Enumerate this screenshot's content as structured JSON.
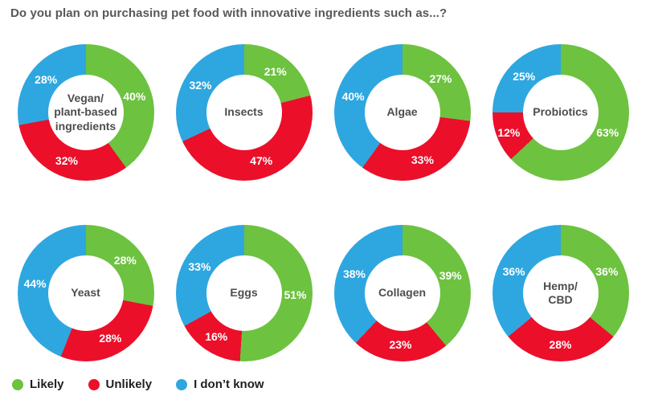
{
  "title": "Do you plan on purchasing pet food with innovative ingredients such as...?",
  "colors": {
    "likely": "#6DC240",
    "unlikely": "#EB0F2A",
    "dont_know": "#2EA7E0",
    "title_text": "#58585A",
    "center_text": "#4D4D4F"
  },
  "legend": [
    {
      "label": "Likely",
      "color": "#6DC240"
    },
    {
      "label": "Unlikely",
      "color": "#EB0F2A"
    },
    {
      "label": "I don’t know",
      "color": "#2EA7E0"
    }
  ],
  "chart_data": {
    "type": "pie",
    "subtype": "donut",
    "direction": "clockwise",
    "start_angle_deg": 0,
    "donut_hole_ratio": 0.55,
    "value_suffix": "%",
    "series_labels": [
      "Likely",
      "Unlikely",
      "I don't know"
    ],
    "series_colors": [
      "#6DC240",
      "#EB0F2A",
      "#2EA7E0"
    ],
    "charts": [
      {
        "title": "Vegan/plant-based ingredients",
        "title_lines": [
          "Vegan/",
          "plant-based",
          "ingredients"
        ],
        "values": [
          40,
          32,
          28
        ]
      },
      {
        "title": "Insects",
        "title_lines": [
          "Insects"
        ],
        "values": [
          21,
          47,
          32
        ]
      },
      {
        "title": "Algae",
        "title_lines": [
          "Algae"
        ],
        "values": [
          27,
          33,
          40
        ]
      },
      {
        "title": "Probiotics",
        "title_lines": [
          "Probiotics"
        ],
        "values": [
          63,
          12,
          25
        ]
      },
      {
        "title": "Yeast",
        "title_lines": [
          "Yeast"
        ],
        "values": [
          28,
          28,
          44
        ]
      },
      {
        "title": "Eggs",
        "title_lines": [
          "Eggs"
        ],
        "values": [
          51,
          16,
          33
        ]
      },
      {
        "title": "Collagen",
        "title_lines": [
          "Collagen"
        ],
        "values": [
          39,
          23,
          38
        ]
      },
      {
        "title": "Hemp/CBD",
        "title_lines": [
          "Hemp/",
          "CBD"
        ],
        "values": [
          36,
          28,
          36
        ]
      }
    ]
  }
}
